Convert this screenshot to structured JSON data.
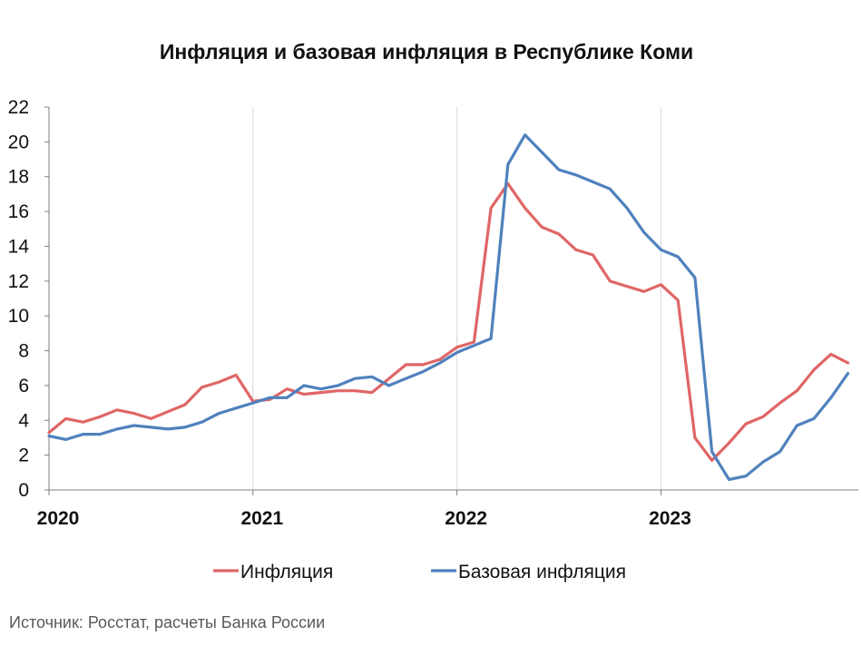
{
  "chart_data": {
    "type": "line",
    "title": "Инфляция и базовая инфляция в Республике Коми",
    "ylim": [
      0,
      22
    ],
    "yticks": [
      0,
      2,
      4,
      6,
      8,
      10,
      12,
      14,
      16,
      18,
      20,
      22
    ],
    "xtick_labels": [
      {
        "label": "2020",
        "month": 0
      },
      {
        "label": "2021",
        "month": 12
      },
      {
        "label": "2022",
        "month": 24
      },
      {
        "label": "2023",
        "month": 36
      }
    ],
    "x_start": "2020-01",
    "x_end": "2023-12",
    "grid": "vertical at year starts",
    "legend_position": "bottom",
    "series": [
      {
        "name": "Инфляция",
        "color": "#e06666",
        "values": [
          3.3,
          4.1,
          3.9,
          4.2,
          4.6,
          4.4,
          4.1,
          4.5,
          4.9,
          5.9,
          6.2,
          6.6,
          5.1,
          5.2,
          5.8,
          5.5,
          5.6,
          5.7,
          5.7,
          5.6,
          6.4,
          7.2,
          7.2,
          7.5,
          8.2,
          8.5,
          16.2,
          17.6,
          16.2,
          15.1,
          14.7,
          13.8,
          13.5,
          12.0,
          11.7,
          11.4,
          11.8,
          10.9,
          3.0,
          1.7,
          2.7,
          3.8,
          4.2,
          5.0,
          5.7,
          6.9,
          7.8,
          7.3
        ]
      },
      {
        "name": "Базовая инфляция",
        "color": "#4f81bd",
        "values": [
          3.1,
          2.9,
          3.2,
          3.2,
          3.5,
          3.7,
          3.6,
          3.5,
          3.6,
          3.9,
          4.4,
          4.7,
          5.0,
          5.3,
          5.3,
          6.0,
          5.8,
          6.0,
          6.4,
          6.5,
          6.0,
          6.4,
          6.8,
          7.3,
          7.9,
          8.3,
          8.7,
          18.7,
          20.4,
          19.4,
          18.4,
          18.1,
          17.7,
          17.3,
          16.2,
          14.8,
          13.8,
          13.4,
          12.2,
          2.2,
          0.6,
          0.8,
          1.6,
          2.2,
          3.7,
          4.1,
          5.3,
          6.7
        ]
      }
    ]
  },
  "source": "Источник: Росстат, расчеты Банка России"
}
